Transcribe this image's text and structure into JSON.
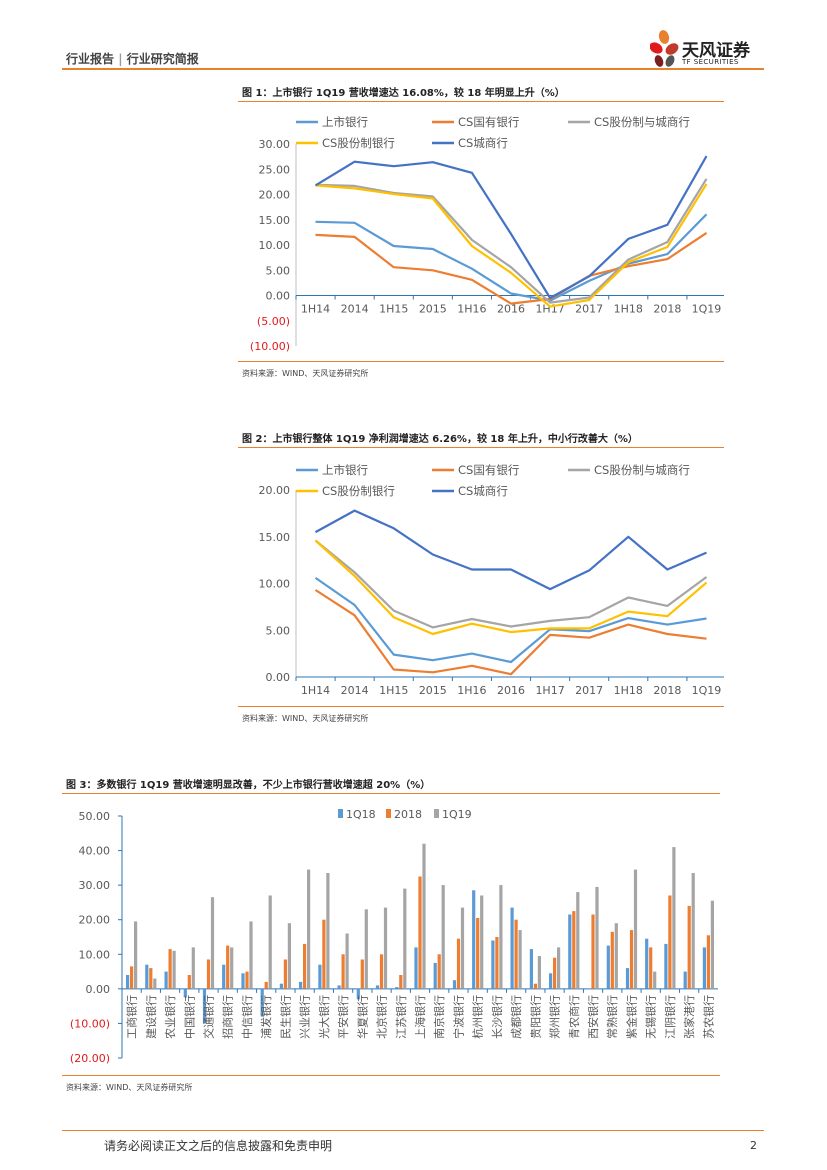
{
  "header": {
    "category": "行业报告",
    "subcategory": "行业研究简报",
    "separator": "|"
  },
  "brand": {
    "name_cn": "天风证券",
    "name_en": "TF SECURITIES",
    "accent": "#e8812e"
  },
  "footer": {
    "disclaimer": "请务必阅读正文之后的信息披露和免责申明",
    "page": "2"
  },
  "figures": [
    {
      "title": "图 1：上市银行 1Q19 营收增速达 16.08%，较 18 年明显上升（%）",
      "source": "资料来源：WIND、天风证券研究所"
    },
    {
      "title": "图 2：上市银行整体 1Q19 净利润增速达 6.26%，较 18 年上升，中小行改善大（%）",
      "source": "资料来源：WIND、天风证券研究所"
    },
    {
      "title": "图 3：多数银行 1Q19 营收增速明显改善，不少上市银行营收增速超 20%（%）",
      "source": "资料来源：WIND、天风证券研究所"
    }
  ],
  "chart_data": [
    {
      "type": "line",
      "title": "上市银行 1Q19 营收增速达 16.08%，较 18 年明显上升（%）",
      "categories": [
        "1H14",
        "2014",
        "1H15",
        "2015",
        "1H16",
        "2016",
        "1H17",
        "2017",
        "1H18",
        "2018",
        "1Q19"
      ],
      "ylim": [
        -10,
        30
      ],
      "yticks": [
        "30.00",
        "25.00",
        "20.00",
        "15.00",
        "10.00",
        "5.00",
        "0.00",
        "(5.00)",
        "(10.00)"
      ],
      "tick_values": [
        30,
        25,
        20,
        15,
        10,
        5,
        0,
        -5,
        -10
      ],
      "negative_color": "#e31a1c",
      "series": [
        {
          "name": "上市银行",
          "color": "#5b9bd5",
          "values": [
            14.6,
            14.4,
            9.8,
            9.2,
            5.3,
            0.4,
            -1.0,
            2.9,
            6.3,
            8.2,
            16.08
          ]
        },
        {
          "name": "CS国有银行",
          "color": "#ed7d31",
          "values": [
            12.0,
            11.6,
            5.6,
            5.0,
            3.1,
            -1.6,
            -0.7,
            3.9,
            5.8,
            7.2,
            12.4
          ]
        },
        {
          "name": "CS股份制与城商行",
          "color": "#a5a5a5",
          "values": [
            21.9,
            21.7,
            20.3,
            19.6,
            11.0,
            5.6,
            -1.4,
            -0.4,
            7.1,
            10.6,
            23.1
          ]
        },
        {
          "name": "CS股份制银行",
          "color": "#ffc000",
          "values": [
            21.8,
            21.2,
            20.1,
            19.2,
            9.8,
            4.5,
            -2.2,
            -0.9,
            6.6,
            9.6,
            22.1
          ]
        },
        {
          "name": "CS城商行",
          "color": "#4472c4",
          "values": [
            21.8,
            26.5,
            25.6,
            26.4,
            24.3,
            12.2,
            -0.5,
            3.8,
            11.2,
            14.0,
            27.6
          ]
        }
      ]
    },
    {
      "type": "line",
      "title": "上市银行整体 1Q19 净利润增速达 6.26%，较 18 年上升，中小行改善大（%）",
      "categories": [
        "1H14",
        "2014",
        "1H15",
        "2015",
        "1H16",
        "2016",
        "1H17",
        "2017",
        "1H18",
        "2018",
        "1Q19"
      ],
      "ylim": [
        0,
        20
      ],
      "yticks": [
        "20.00",
        "15.00",
        "10.00",
        "5.00",
        "0.00"
      ],
      "tick_values": [
        20,
        15,
        10,
        5,
        0
      ],
      "series": [
        {
          "name": "上市银行",
          "color": "#5b9bd5",
          "values": [
            10.6,
            7.7,
            2.4,
            1.8,
            2.5,
            1.6,
            5.1,
            4.9,
            6.3,
            5.6,
            6.26
          ]
        },
        {
          "name": "CS国有银行",
          "color": "#ed7d31",
          "values": [
            9.3,
            6.6,
            0.8,
            0.5,
            1.2,
            0.3,
            4.5,
            4.2,
            5.6,
            4.6,
            4.1
          ]
        },
        {
          "name": "CS股份制与城商行",
          "color": "#a5a5a5",
          "values": [
            14.6,
            11.2,
            7.1,
            5.3,
            6.2,
            5.4,
            6.0,
            6.4,
            8.5,
            7.6,
            10.7
          ]
        },
        {
          "name": "CS股份制银行",
          "color": "#ffc000",
          "values": [
            14.6,
            10.8,
            6.4,
            4.6,
            5.7,
            4.8,
            5.2,
            5.2,
            7.0,
            6.5,
            10.1
          ]
        },
        {
          "name": "CS城商行",
          "color": "#4472c4",
          "values": [
            15.5,
            17.8,
            15.9,
            13.1,
            11.5,
            11.5,
            9.4,
            11.4,
            15.0,
            11.5,
            13.3
          ]
        }
      ]
    },
    {
      "type": "bar",
      "title": "多数银行 1Q19 营收增速明显改善，不少上市银行营收增速超 20%（%）",
      "categories": [
        "工商银行",
        "建设银行",
        "农业银行",
        "中国银行",
        "交通银行",
        "招商银行",
        "中信银行",
        "浦发银行",
        "民生银行",
        "兴业银行",
        "光大银行",
        "平安银行",
        "华夏银行",
        "北京银行",
        "江苏银行",
        "上海银行",
        "南京银行",
        "宁波银行",
        "杭州银行",
        "长沙银行",
        "成都银行",
        "贵阳银行",
        "郑州银行",
        "青农商行",
        "西安银行",
        "常熟银行",
        "紫金银行",
        "无锡银行",
        "江阴银行",
        "张家港行",
        "苏农银行"
      ],
      "ylim": [
        -20,
        50
      ],
      "yticks": [
        "50.00",
        "40.00",
        "30.00",
        "20.00",
        "10.00",
        "0.00",
        "(10.00)",
        "(20.00)"
      ],
      "tick_values": [
        50,
        40,
        30,
        20,
        10,
        0,
        -10,
        -20
      ],
      "negative_color": "#e31a1c",
      "series": [
        {
          "name": "1Q18",
          "color": "#5b9bd5",
          "values": [
            4.0,
            7.0,
            5.0,
            -2.5,
            -10.0,
            7.0,
            4.5,
            -8.0,
            1.5,
            2.0,
            7.0,
            1.0,
            -3.0,
            1.0,
            0.5,
            12.0,
            7.5,
            2.5,
            28.5,
            14.0,
            23.5,
            11.5,
            4.5,
            21.5,
            0.0,
            12.5,
            6.0,
            14.5,
            13.0,
            5.0,
            12.0
          ]
        },
        {
          "name": "2018",
          "color": "#ed7d31",
          "values": [
            6.5,
            6.0,
            11.5,
            4.0,
            8.5,
            12.5,
            5.0,
            2.0,
            8.5,
            13.0,
            20.0,
            10.0,
            8.5,
            10.0,
            4.0,
            32.5,
            10.0,
            14.5,
            20.5,
            15.0,
            20.0,
            1.5,
            9.0,
            22.5,
            21.5,
            16.5,
            17.0,
            12.0,
            27.0,
            24.0,
            15.5
          ]
        },
        {
          "name": "1Q19",
          "color": "#a5a5a5",
          "values": [
            19.5,
            3.0,
            11.0,
            12.0,
            26.5,
            12.0,
            19.5,
            27.0,
            19.0,
            34.5,
            33.5,
            16.0,
            23.0,
            23.5,
            29.0,
            42.0,
            30.0,
            23.5,
            27.0,
            30.0,
            17.0,
            9.5,
            12.0,
            28.0,
            29.5,
            19.0,
            34.5,
            5.0,
            41.0,
            33.5,
            25.5
          ]
        }
      ]
    }
  ]
}
